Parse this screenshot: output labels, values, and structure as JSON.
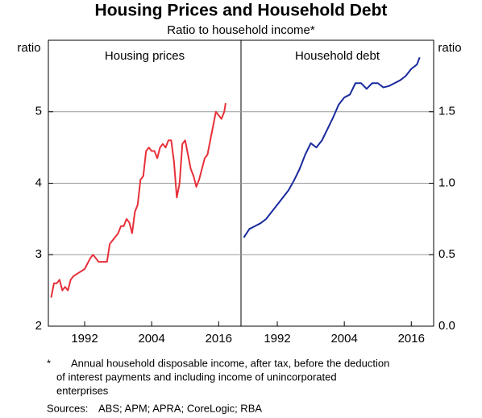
{
  "title": "Housing Prices and Household Debt",
  "subtitle": "Ratio to household income*",
  "footnote_marker": "*",
  "footnote_lines": [
    "Annual household disposable income, after tax, before the deduction",
    "of interest payments and including income of unincorporated",
    "enterprises"
  ],
  "sources_label": "Sources:",
  "sources": "ABS; APM; APRA; CoreLogic; RBA",
  "chart_data": [
    {
      "type": "line",
      "title": "Housing prices",
      "y_axis_label": "ratio",
      "y_axis_side": "left",
      "color": "#e8303a",
      "xlim": [
        1985.5,
        2020
      ],
      "xticks": [
        1992,
        2004,
        2016
      ],
      "ylim": [
        2,
        6
      ],
      "yticks": [
        2,
        3,
        4,
        5
      ],
      "grid": true,
      "x": [
        1986,
        1986.5,
        1987,
        1987.5,
        1988,
        1988.5,
        1989,
        1989.5,
        1990,
        1991,
        1992,
        1993,
        1993.5,
        1994,
        1994.5,
        1995,
        1996,
        1996.5,
        1997,
        1998,
        1998.5,
        1999,
        1999.5,
        2000,
        2000.5,
        2001,
        2001.5,
        2002,
        2002.5,
        2003,
        2003.5,
        2004,
        2004.5,
        2005,
        2005.5,
        2006,
        2006.5,
        2007,
        2007.5,
        2008,
        2008.5,
        2009,
        2009.5,
        2010,
        2010.5,
        2011,
        2011.5,
        2012,
        2012.5,
        2013,
        2013.5,
        2014,
        2014.5,
        2015,
        2015.5,
        2016,
        2016.5,
        2017,
        2017.25
      ],
      "values": [
        2.4,
        2.6,
        2.6,
        2.65,
        2.5,
        2.55,
        2.5,
        2.65,
        2.7,
        2.75,
        2.8,
        2.95,
        3.0,
        2.95,
        2.9,
        2.9,
        2.9,
        3.15,
        3.2,
        3.3,
        3.4,
        3.4,
        3.5,
        3.45,
        3.3,
        3.6,
        3.7,
        4.05,
        4.1,
        4.45,
        4.5,
        4.45,
        4.45,
        4.35,
        4.5,
        4.55,
        4.5,
        4.6,
        4.6,
        4.3,
        3.8,
        4.0,
        4.55,
        4.6,
        4.4,
        4.2,
        4.1,
        3.95,
        4.05,
        4.2,
        4.35,
        4.4,
        4.6,
        4.8,
        5.0,
        4.95,
        4.9,
        5.0,
        5.12
      ]
    },
    {
      "type": "line",
      "title": "Household debt",
      "y_axis_label": "ratio",
      "y_axis_side": "right",
      "color": "#1a2a9c",
      "xlim": [
        1985.5,
        2020
      ],
      "xticks": [
        1992,
        2004,
        2016
      ],
      "ylim": [
        0,
        2
      ],
      "yticks": [
        {
          "value": 0,
          "label": "0.0"
        },
        0.5,
        {
          "value": 1,
          "label": "1.0"
        },
        1.5
      ],
      "grid": true,
      "x": [
        1986,
        1987,
        1988,
        1989,
        1990,
        1991,
        1992,
        1993,
        1994,
        1995,
        1996,
        1997,
        1998,
        1999,
        2000,
        2001,
        2002,
        2003,
        2004,
        2005,
        2006,
        2007,
        2008,
        2009,
        2010,
        2011,
        2012,
        2013,
        2014,
        2015,
        2016,
        2017,
        2017.5
      ],
      "values": [
        0.62,
        0.68,
        0.7,
        0.72,
        0.75,
        0.8,
        0.85,
        0.9,
        0.95,
        1.02,
        1.1,
        1.2,
        1.28,
        1.25,
        1.3,
        1.38,
        1.46,
        1.55,
        1.6,
        1.62,
        1.7,
        1.7,
        1.66,
        1.7,
        1.7,
        1.67,
        1.68,
        1.7,
        1.72,
        1.75,
        1.8,
        1.83,
        1.88
      ]
    }
  ]
}
